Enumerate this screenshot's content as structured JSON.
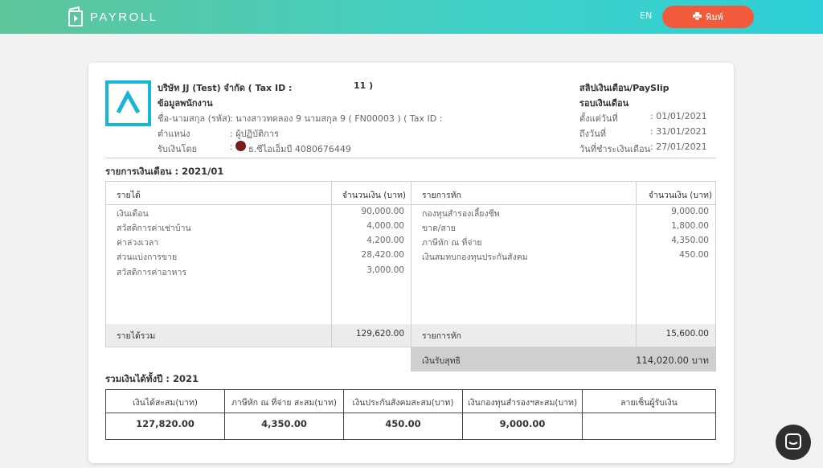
{
  "app": {
    "name": "PAYROLL",
    "language": "EN",
    "print_label": "พิมพ์"
  },
  "company": {
    "name_label": "บริษัท JJ (Test) จำกัด ( Tax ID :",
    "tax_id_end": "11 )",
    "section_title": "ข้อมูลพนักงาน"
  },
  "employee": {
    "name_label": "ชื่อ-นามสกุล (รหัส)",
    "name_value": ": นางสาวทดลอง 9 นามสกุล 9 ( FN00003 ) ( Tax ID :",
    "position_label": "ตำแหน่ง",
    "position_value": ": ผู้ปฏิบัติการ",
    "payment_label": "รับเงินโดย",
    "payment_value": "ธ.ซีไอเอ็มบี 4080676449",
    "payment_prefix": ":"
  },
  "payslip": {
    "title": "สลิปเงินเดือน/PaySlip",
    "cycle_title": "รอบเงินเดือน",
    "start_label": "ตั้งแต่วันที่",
    "start_value": ": 01/01/2021",
    "end_label": "ถึงวันที่",
    "end_value": ": 31/01/2021",
    "paid_label": "วันที่ชำระเงินเดือน",
    "paid_value": ": 27/01/2021"
  },
  "salary_section": {
    "title": "รายการเงินเดือน : 2021/01"
  },
  "income": {
    "header_label": "รายได้",
    "header_amount": "จำนวนเงิน (บาท)",
    "items": [
      {
        "label": "เงินเดือน",
        "amount": "90,000.00"
      },
      {
        "label": "สวัสดิการค่าเช่าบ้าน",
        "amount": "4,000.00"
      },
      {
        "label": "ค่าล่วงเวลา",
        "amount": "4,200.00"
      },
      {
        "label": "ส่วนแบ่งการขาย",
        "amount": "28,420.00"
      },
      {
        "label": "สวัสดิการค่าอาหาร",
        "amount": "3,000.00"
      }
    ],
    "total_label": "รายได้รวม",
    "total_amount": "129,620.00"
  },
  "deduction": {
    "header_label": "รายการหัก",
    "header_amount": "จำนวนเงิน (บาท)",
    "items": [
      {
        "label": "กองทุนสำรองเลี้ยงชีพ",
        "amount": "9,000.00"
      },
      {
        "label": "ขาด/สาย",
        "amount": "1,800.00"
      },
      {
        "label": "ภาษีหัก ณ ที่จ่าย",
        "amount": "4,350.00"
      },
      {
        "label": "เงินสมทบกองทุนประกันสังคม",
        "amount": "450.00"
      }
    ],
    "total_label": "รายการหัก",
    "total_amount": "15,600.00",
    "net_label": "เงินรับสุทธิ",
    "net_amount": "114,020.00 บาท"
  },
  "annual": {
    "title": "รวมเงินได้ทั้งปี : 2021",
    "headers": [
      "เงินได้สะสม(บาท)",
      "ภาษีหัก ณ ที่จ่าย สะสม(บาท)",
      "เงินประกันสังคมสะสม(บาท)",
      "เงินกองทุนสำรองฯสะสม(บาท)",
      "ลายเซ็นผู้รับเงิน"
    ],
    "values": [
      "127,820.00",
      "4,350.00",
      "450.00",
      "9,000.00",
      ""
    ]
  },
  "colors": {
    "accent": "#f15a3a",
    "brand": "#3ed0c8",
    "logo_border": "#19b5d8"
  },
  "icons": {
    "print": "printer-icon",
    "chat": "chat-bubble-icon",
    "logo": "payroll-logo-icon",
    "bank": "bank-cimb-icon"
  }
}
